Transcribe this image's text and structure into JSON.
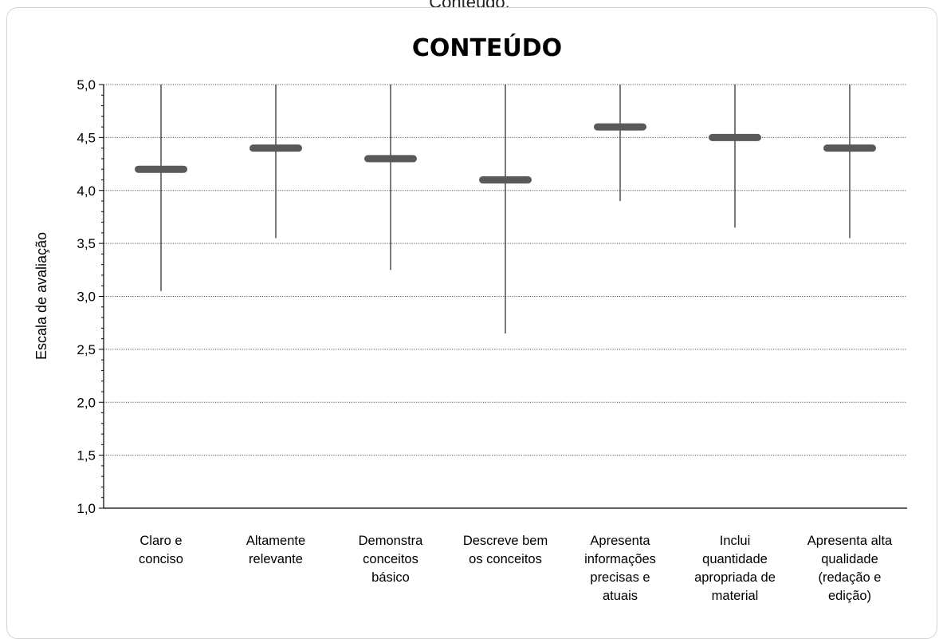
{
  "caption": "Conteúdo.",
  "chart_data": {
    "type": "high-low",
    "title": "CONTEÚDO",
    "ylabel": "Escala de avaliação",
    "xlabel": "",
    "ylim": [
      1.0,
      5.0
    ],
    "ytick_step": 0.5,
    "yticks": [
      "1,0",
      "1,5",
      "2,0",
      "2,5",
      "3,0",
      "3,5",
      "4,0",
      "4,5",
      "5,0"
    ],
    "grid": "horizontal dotted",
    "categories": [
      [
        "Claro e",
        "conciso"
      ],
      [
        "Altamente",
        "relevante"
      ],
      [
        "Demonstra",
        "conceitos",
        "básico"
      ],
      [
        "Descreve bem",
        "os conceitos"
      ],
      [
        "Apresenta",
        "informações",
        "precisas e",
        "atuais"
      ],
      [
        "Inclui",
        "quantidade",
        "apropriada de",
        "material"
      ],
      [
        "Apresenta alta",
        "qualidade",
        "(redação e",
        "edição)"
      ]
    ],
    "mean": [
      4.2,
      4.4,
      4.3,
      4.1,
      4.6,
      4.5,
      4.4
    ],
    "low": [
      3.05,
      3.55,
      3.25,
      2.65,
      3.9,
      3.65,
      3.55
    ],
    "high": [
      5.0,
      5.0,
      5.0,
      5.0,
      5.0,
      5.0,
      5.0
    ],
    "colors": {
      "mean_marker": "#595959",
      "range_line": "#404040",
      "grid": "#555555",
      "axis": "#000000"
    }
  }
}
